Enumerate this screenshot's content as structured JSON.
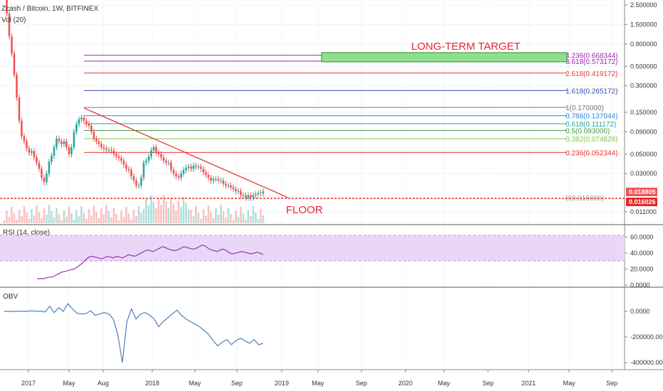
{
  "header": {
    "title": "Zcash / Bitcoin, 1W, BITFINEX",
    "volume_label": "Vol (20)"
  },
  "annotations": {
    "target": "LONG-TERM TARGET",
    "floor": "FLOOR"
  },
  "colors": {
    "up": "#26a69a",
    "down": "#ef5350",
    "trend": "#e8262b",
    "rsi_line": "#8e3ca8",
    "obv_line": "#4b80b8",
    "target_box": "#8ee08e"
  },
  "chart_data": [
    {
      "type": "candlestick",
      "title": "Zcash / Bitcoin, 1W, BITFINEX",
      "y_scale": "log",
      "y_ticks": [
        "2.500000",
        "1.500000",
        "0.900000",
        "0.500000",
        "0.300000",
        "0.150000",
        "0.090000",
        "0.050000",
        "0.030000",
        "0.011000"
      ],
      "x_ticks": [
        "2017",
        "May",
        "Aug",
        "2018",
        "May",
        "Sep",
        "2019",
        "May",
        "Sep",
        "2020",
        "May",
        "Sep",
        "2021",
        "May",
        "Sep"
      ],
      "price_badges": [
        "0.018805",
        "0.016026"
      ],
      "close_series": [
        3.5,
        2.0,
        1.1,
        0.7,
        0.4,
        0.22,
        0.12,
        0.08,
        0.07,
        0.058,
        0.052,
        0.054,
        0.046,
        0.04,
        0.034,
        0.027,
        0.024,
        0.03,
        0.041,
        0.048,
        0.06,
        0.075,
        0.07,
        0.065,
        0.07,
        0.06,
        0.05,
        0.06,
        0.09,
        0.11,
        0.125,
        0.13,
        0.12,
        0.11,
        0.105,
        0.09,
        0.075,
        0.07,
        0.065,
        0.06,
        0.058,
        0.056,
        0.056,
        0.055,
        0.05,
        0.047,
        0.045,
        0.042,
        0.038,
        0.034,
        0.033,
        0.028,
        0.025,
        0.022,
        0.022,
        0.027,
        0.04,
        0.042,
        0.047,
        0.055,
        0.06,
        0.052,
        0.05,
        0.046,
        0.042,
        0.04,
        0.04,
        0.033,
        0.03,
        0.028,
        0.027,
        0.03,
        0.033,
        0.035,
        0.036,
        0.034,
        0.037,
        0.036,
        0.036,
        0.034,
        0.031,
        0.029,
        0.027,
        0.025,
        0.026,
        0.026,
        0.025,
        0.025,
        0.023,
        0.022,
        0.022,
        0.021,
        0.02,
        0.019,
        0.019,
        0.017,
        0.017,
        0.016,
        0.017,
        0.016,
        0.017,
        0.0175,
        0.018,
        0.0178,
        0.0188
      ],
      "fibonacci": [
        {
          "label": "4.236(0.668344)",
          "value": 0.668344
        },
        {
          "label": "3.618(0.573172)",
          "value": 0.573172
        },
        {
          "label": "2.618(0.419172)",
          "value": 0.419172
        },
        {
          "label": "1.618(0.265172)",
          "value": 0.265172
        },
        {
          "label": "1(0.170000)",
          "value": 0.17
        },
        {
          "label": "0.786(0.137044)",
          "value": 0.137044
        },
        {
          "label": "0.618(0.111172)",
          "value": 0.111172
        },
        {
          "label": "0.5(0.093000)",
          "value": 0.093
        },
        {
          "label": "0.382(0.074828)",
          "value": 0.074828
        },
        {
          "label": "0.236(0.052344)",
          "value": 0.052344
        },
        {
          "label": "0(0.016000)",
          "value": 0.016
        }
      ]
    },
    {
      "type": "line",
      "title": "RSI (14, close)",
      "y_ticks": [
        "60.0000",
        "40.0000",
        "20.0000",
        "0.0000"
      ],
      "band": [
        30,
        70
      ],
      "values": [
        8,
        8,
        8,
        9,
        10,
        10,
        12,
        14,
        16,
        17,
        18,
        19,
        20,
        22,
        25,
        28,
        32,
        35,
        36,
        35,
        34,
        33,
        34,
        36,
        35,
        34,
        36,
        35,
        34,
        36,
        38,
        37,
        36,
        38,
        40,
        42,
        44,
        43,
        42,
        44,
        46,
        48,
        47,
        45,
        44,
        43,
        44,
        46,
        48,
        47,
        46,
        45,
        46,
        48,
        50,
        49,
        46,
        44,
        43,
        42,
        44,
        45,
        43,
        40,
        39,
        40,
        41,
        42,
        41,
        40,
        39,
        40,
        41,
        40,
        38
      ]
    },
    {
      "type": "line",
      "title": "OBV",
      "y_ticks": [
        "0.0000",
        "-200000.0000",
        "-400000.0000"
      ],
      "values": [
        0,
        0,
        0,
        0,
        2000,
        0,
        5000,
        0,
        3000,
        -5000,
        40000,
        -10000,
        30000,
        0,
        60000,
        20000,
        -15000,
        -20000,
        -18000,
        5000,
        -30000,
        -20000,
        -10000,
        -20000,
        -60000,
        -180000,
        -400000,
        -80000,
        20000,
        -60000,
        -20000,
        -10000,
        -30000,
        -60000,
        -120000,
        -80000,
        -50000,
        -20000,
        10000,
        -30000,
        -60000,
        -80000,
        -100000,
        -120000,
        -150000,
        -180000,
        -230000,
        -270000,
        -240000,
        -220000,
        -260000,
        -230000,
        -210000,
        -230000,
        -250000,
        -220000,
        -260000,
        -250000
      ]
    }
  ]
}
